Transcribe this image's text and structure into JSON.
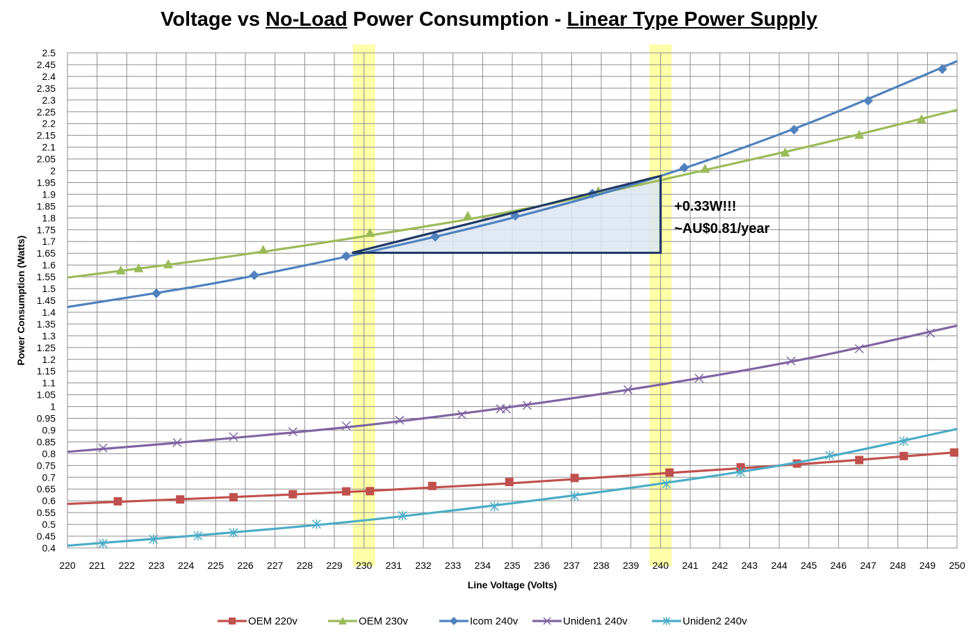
{
  "chart_data": {
    "type": "line",
    "title": {
      "parts": [
        {
          "text": "Voltage vs ",
          "underline": false
        },
        {
          "text": "No-Load",
          "underline": true
        },
        {
          "text": " Power Consumption - ",
          "underline": false
        },
        {
          "text": "Linear Type Power Supply",
          "underline": true
        }
      ]
    },
    "xlabel": "Line Voltage (Volts)",
    "ylabel": "Power Consumption (Watts)",
    "xlim": [
      220,
      250
    ],
    "ylim": [
      0.4,
      2.5
    ],
    "x_ticks": [
      "220",
      "221",
      "222",
      "223",
      "224",
      "225",
      "226",
      "227",
      "228",
      "229",
      "230",
      "231",
      "232",
      "233",
      "234",
      "235",
      "236",
      "237",
      "238",
      "239",
      "240",
      "241",
      "242",
      "243",
      "244",
      "245",
      "246",
      "247",
      "248",
      "249",
      "250"
    ],
    "y_ticks": [
      "0.4",
      "0.45",
      "0.5",
      "0.55",
      "0.6",
      "0.65",
      "0.7",
      "0.75",
      "0.8",
      "0.85",
      "0.9",
      "0.95",
      "1",
      "1.05",
      "1.1",
      "1.15",
      "1.2",
      "1.25",
      "1.3",
      "1.35",
      "1.4",
      "1.45",
      "1.5",
      "1.55",
      "1.6",
      "1.65",
      "1.7",
      "1.75",
      "1.8",
      "1.85",
      "1.9",
      "1.95",
      "2",
      "2.05",
      "2.1",
      "2.15",
      "2.2",
      "2.25",
      "2.3",
      "2.35",
      "2.4",
      "2.45",
      "2.5"
    ],
    "grid": true,
    "legend_position": "bottom",
    "highlight_bands": [
      230,
      240
    ],
    "highlight_color": "#ffff99",
    "series": [
      {
        "name": "OEM 220v",
        "color": "#c0504d",
        "marker": "square",
        "trend": [
          [
            220,
            0.587
          ],
          [
            225,
            0.613
          ],
          [
            230,
            0.641
          ],
          [
            235,
            0.675
          ],
          [
            240,
            0.716
          ],
          [
            245,
            0.758
          ],
          [
            250,
            0.806
          ]
        ],
        "points": [
          [
            221.7,
            0.598
          ],
          [
            223.8,
            0.606
          ],
          [
            225.6,
            0.615
          ],
          [
            227.6,
            0.628
          ],
          [
            229.4,
            0.64
          ],
          [
            230.2,
            0.641
          ],
          [
            232.3,
            0.663
          ],
          [
            234.9,
            0.68
          ],
          [
            237.1,
            0.697
          ],
          [
            240.3,
            0.72
          ],
          [
            242.7,
            0.742
          ],
          [
            244.6,
            0.758
          ],
          [
            246.7,
            0.773
          ],
          [
            248.2,
            0.79
          ],
          [
            249.9,
            0.805
          ]
        ]
      },
      {
        "name": "OEM 230v",
        "color": "#9bbb59",
        "marker": "triangle",
        "trend": [
          [
            220,
            1.547
          ],
          [
            225,
            1.628
          ],
          [
            230,
            1.722
          ],
          [
            235,
            1.828
          ],
          [
            240,
            1.96
          ],
          [
            245,
            2.103
          ],
          [
            250,
            2.258
          ]
        ],
        "points": [
          [
            221.8,
            1.578
          ],
          [
            222.4,
            1.587
          ],
          [
            223.4,
            1.604
          ],
          [
            226.6,
            1.665
          ],
          [
            230.2,
            1.737
          ],
          [
            233.5,
            1.809
          ],
          [
            237.9,
            1.914
          ],
          [
            241.5,
            2.009
          ],
          [
            244.2,
            2.078
          ],
          [
            246.7,
            2.153
          ],
          [
            248.8,
            2.219
          ]
        ]
      },
      {
        "name": "Icom 240v",
        "color": "#4f81bd",
        "marker": "diamond",
        "trend": [
          [
            220,
            1.422
          ],
          [
            225,
            1.524
          ],
          [
            230,
            1.652
          ],
          [
            235,
            1.8
          ],
          [
            240,
            1.978
          ],
          [
            245,
            2.202
          ],
          [
            250,
            2.465
          ]
        ],
        "points": [
          [
            223,
            1.48
          ],
          [
            226.3,
            1.557
          ],
          [
            229.4,
            1.638
          ],
          [
            232.4,
            1.72
          ],
          [
            235.1,
            1.809
          ],
          [
            237.7,
            1.903
          ],
          [
            240.8,
            2.013
          ],
          [
            244.5,
            2.174
          ],
          [
            247,
            2.297
          ],
          [
            249.5,
            2.431
          ]
        ]
      },
      {
        "name": "Uniden1 240v",
        "color": "#8064a2",
        "marker": "x",
        "trend": [
          [
            220,
            0.808
          ],
          [
            225,
            0.86
          ],
          [
            230,
            0.92
          ],
          [
            235,
            0.999
          ],
          [
            240,
            1.093
          ],
          [
            245,
            1.205
          ],
          [
            250,
            1.343
          ]
        ],
        "points": [
          [
            221.2,
            0.824
          ],
          [
            223.7,
            0.847
          ],
          [
            225.6,
            0.872
          ],
          [
            227.6,
            0.893
          ],
          [
            229.4,
            0.918
          ],
          [
            231.2,
            0.942
          ],
          [
            233.3,
            0.965
          ],
          [
            234.6,
            0.99
          ],
          [
            234.8,
            0.99
          ],
          [
            235.5,
            1.005
          ],
          [
            238.9,
            1.072
          ],
          [
            241.3,
            1.12
          ],
          [
            244.4,
            1.193
          ],
          [
            246.7,
            1.245
          ],
          [
            249.1,
            1.312
          ]
        ]
      },
      {
        "name": "Uniden2 240v",
        "color": "#4bacc6",
        "marker": "asterisk",
        "trend": [
          [
            220,
            0.41
          ],
          [
            225,
            0.46
          ],
          [
            230,
            0.517
          ],
          [
            235,
            0.59
          ],
          [
            240,
            0.673
          ],
          [
            245,
            0.772
          ],
          [
            250,
            0.905
          ]
        ],
        "points": [
          [
            221.2,
            0.419
          ],
          [
            222.9,
            0.437
          ],
          [
            224.4,
            0.452
          ],
          [
            225.6,
            0.465
          ],
          [
            228.4,
            0.501
          ],
          [
            231.3,
            0.537
          ],
          [
            234.4,
            0.576
          ],
          [
            237.1,
            0.62
          ],
          [
            240.2,
            0.672
          ],
          [
            242.7,
            0.722
          ],
          [
            245.7,
            0.793
          ],
          [
            248.2,
            0.853
          ]
        ]
      }
    ],
    "annotation": {
      "lines": [
        "+0.33W!!!",
        "~AU$0.81/year"
      ],
      "triangle": [
        [
          229.6,
          1.652
        ],
        [
          240,
          1.652
        ],
        [
          240,
          1.978
        ]
      ],
      "triangle_color": "#1f3864",
      "triangle_fill": "#dce6f2"
    }
  }
}
